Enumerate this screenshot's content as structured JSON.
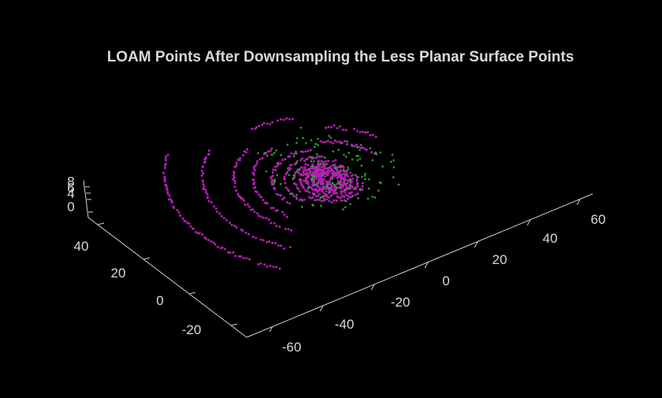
{
  "chart_data": {
    "type": "scatter",
    "title": "LOAM Points After Downsampling the Less Planar Surface Points",
    "xlabel": "",
    "ylabel": "",
    "zlabel": "",
    "x_ticks": [
      "-60",
      "-40",
      "-20",
      "0",
      "20",
      "40",
      "60"
    ],
    "y_ticks": [
      "-20",
      "0",
      "20",
      "40"
    ],
    "z_ticks": [
      "0",
      "4",
      "6",
      "8"
    ],
    "xlim": [
      -70,
      70
    ],
    "ylim": [
      -30,
      50
    ],
    "zlim": [
      0,
      8
    ],
    "grid": false,
    "legend": "none",
    "series": [
      {
        "color": "#b31fb3"
      },
      {
        "color": "#2fa02f"
      }
    ]
  }
}
